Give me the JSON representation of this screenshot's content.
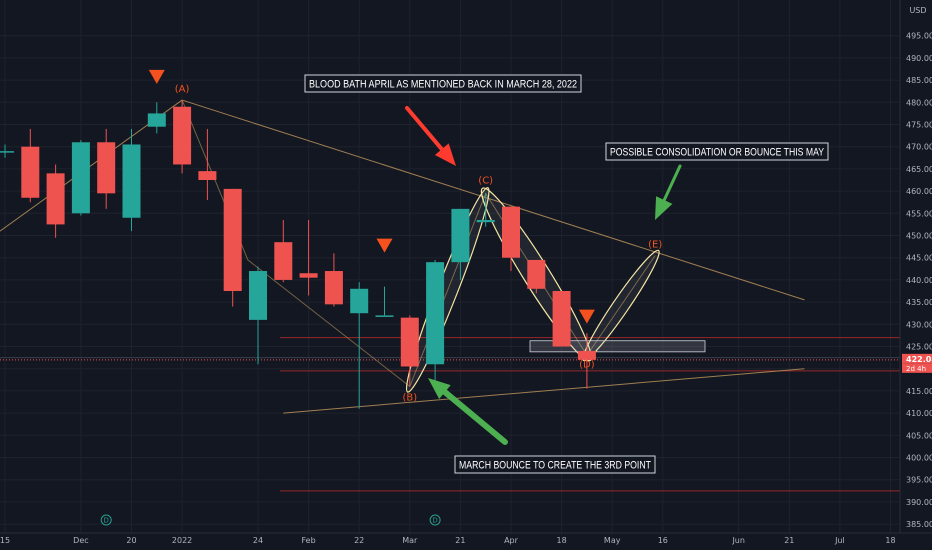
{
  "chart_data": {
    "type": "candlestick",
    "currency": "USD",
    "y_ticks": [
      385,
      390,
      395,
      400,
      405,
      410,
      415,
      420,
      425,
      430,
      435,
      440,
      445,
      450,
      455,
      460,
      465,
      470,
      475,
      480,
      485,
      490,
      495
    ],
    "y_tick_labels": [
      "385.00",
      "390.00",
      "395.00",
      "400.00",
      "405.00",
      "410.00",
      "415.00",
      "420.00",
      "425.00",
      "430.00",
      "435.00",
      "440.00",
      "445.00",
      "450.00",
      "455.00",
      "460.00",
      "465.00",
      "470.00",
      "475.00",
      "480.00",
      "485.00",
      "490.00",
      "495.00"
    ],
    "ylim": [
      383,
      500
    ],
    "x_ticks": [
      {
        "week": 0,
        "label": "15"
      },
      {
        "week": 3,
        "label": "Dec"
      },
      {
        "week": 5,
        "label": "20"
      },
      {
        "week": 7,
        "label": "2022"
      },
      {
        "week": 10,
        "label": "24"
      },
      {
        "week": 12,
        "label": "Feb"
      },
      {
        "week": 14,
        "label": "22"
      },
      {
        "week": 16,
        "label": "Mar"
      },
      {
        "week": 18,
        "label": "21"
      },
      {
        "week": 20,
        "label": "Apr"
      },
      {
        "week": 22,
        "label": "18"
      },
      {
        "week": 24,
        "label": "May"
      },
      {
        "week": 26,
        "label": "16"
      },
      {
        "week": 29,
        "label": "Jun"
      },
      {
        "week": 31,
        "label": "21"
      },
      {
        "week": 33,
        "label": "Jul"
      },
      {
        "week": 35,
        "label": "18"
      }
    ],
    "candles": [
      {
        "week": 0,
        "open": 469.0,
        "high": 470.5,
        "low": 467.5,
        "close": 469.0
      },
      {
        "week": 1,
        "open": 470.0,
        "high": 474.0,
        "low": 457.5,
        "close": 458.5
      },
      {
        "week": 2,
        "open": 464.0,
        "high": 466.0,
        "low": 449.5,
        "close": 452.5
      },
      {
        "week": 3,
        "open": 455.0,
        "high": 471.5,
        "low": 454.5,
        "close": 471.0
      },
      {
        "week": 4,
        "open": 471.0,
        "high": 474.0,
        "low": 456.0,
        "close": 459.5
      },
      {
        "week": 5,
        "open": 454.0,
        "high": 474.0,
        "low": 451.0,
        "close": 470.5
      },
      {
        "week": 6,
        "open": 474.5,
        "high": 480.0,
        "low": 473.0,
        "close": 477.5
      },
      {
        "week": 7,
        "open": 479.0,
        "high": 480.5,
        "low": 464.0,
        "close": 466.0
      },
      {
        "week": 8,
        "open": 464.5,
        "high": 474.0,
        "low": 458.0,
        "close": 462.5
      },
      {
        "week": 9,
        "open": 460.5,
        "high": 460.5,
        "low": 434.0,
        "close": 437.5
      },
      {
        "week": 10,
        "open": 431.0,
        "high": 443.0,
        "low": 421.0,
        "close": 442.0
      },
      {
        "week": 11,
        "open": 448.5,
        "high": 453.5,
        "low": 439.5,
        "close": 440.0
      },
      {
        "week": 12,
        "open": 441.5,
        "high": 453.5,
        "low": 436.5,
        "close": 440.5
      },
      {
        "week": 13,
        "open": 442.0,
        "high": 446.0,
        "low": 434.0,
        "close": 434.5
      },
      {
        "week": 14,
        "open": 432.5,
        "high": 439.5,
        "low": 411.0,
        "close": 438.0
      },
      {
        "week": 15,
        "open": 432.0,
        "high": 438.5,
        "low": 432.0,
        "close": 432.0
      },
      {
        "week": 16,
        "open": 431.5,
        "high": 432.0,
        "low": 416.0,
        "close": 420.5
      },
      {
        "week": 17,
        "open": 421.0,
        "high": 444.5,
        "low": 416.0,
        "close": 444.0
      },
      {
        "week": 18,
        "open": 444.0,
        "high": 456.0,
        "low": 440.0,
        "close": 456.0
      },
      {
        "week": 19,
        "open": 453.0,
        "high": 459.5,
        "low": 452.0,
        "close": 453.5
      },
      {
        "week": 20,
        "open": 456.5,
        "high": 456.5,
        "low": 442.0,
        "close": 445.0
      },
      {
        "week": 21,
        "open": 444.5,
        "high": 444.5,
        "low": 437.0,
        "close": 438.0
      },
      {
        "week": 22,
        "open": 437.5,
        "high": 437.5,
        "low": 425.0,
        "close": 425.0
      },
      {
        "week": 23,
        "open": 424.0,
        "high": 428.0,
        "low": 415.5,
        "close": 422.0
      }
    ],
    "price_label": "422.08",
    "countdown_label": "2d 4h",
    "annotations": [
      {
        "text": "BLOOD BATH APRIL AS MENTIONED BACK IN MARCH 28, 2022"
      },
      {
        "text": "POSSIBLE CONSOLIDATION OR BOUNCE THIS MAY"
      },
      {
        "text": "MARCH BOUNCE TO CREATE THE 3RD POINT"
      }
    ],
    "wave_points": [
      {
        "label": "(A)",
        "week": 7,
        "price": 480.5
      },
      {
        "label": "(B)",
        "week": 16,
        "price": 416.0
      },
      {
        "label": "(C)",
        "week": 19,
        "price": 459.5
      },
      {
        "label": "(D)",
        "week": 23,
        "price": 423.0
      },
      {
        "label": "(E)",
        "week": 25.7,
        "price": 445.5
      }
    ],
    "levels": [
      427.0,
      419.5,
      392.5
    ],
    "colors": {
      "up": "#26a69a",
      "down": "#ef5350",
      "background": "#131722",
      "trendline": "#b8925a",
      "level": "#a52a2a",
      "ellipse": "#f5e6a3",
      "marker": "#f4511e",
      "green_arrow": "#4caf50",
      "red_arrow": "#ff3b30"
    },
    "events": [
      {
        "week": 4,
        "label": "D"
      },
      {
        "week": 17,
        "label": "D"
      }
    ]
  }
}
